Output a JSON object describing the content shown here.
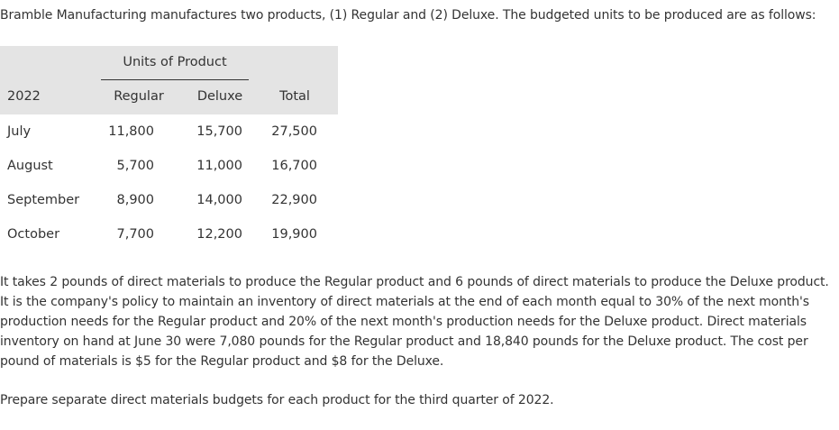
{
  "intro": "Bramble Manufacturing manufactures two products, (1) Regular and (2) Deluxe. The budgeted units to be produced are as follows:",
  "table": {
    "group_header": "Units of Product",
    "year_header": "2022",
    "columns": [
      "Regular",
      "Deluxe",
      "Total"
    ],
    "rows": [
      {
        "month": "July",
        "regular": "11,800",
        "deluxe": "15,700",
        "total": "27,500"
      },
      {
        "month": "August",
        "regular": "5,700",
        "deluxe": "11,000",
        "total": "16,700"
      },
      {
        "month": "September",
        "regular": "8,900",
        "deluxe": "14,000",
        "total": "22,900"
      },
      {
        "month": "October",
        "regular": "7,700",
        "deluxe": "12,200",
        "total": "19,900"
      }
    ]
  },
  "paragraph": "It takes 2 pounds of direct materials to produce the Regular product and 6 pounds of direct materials to produce the Deluxe product. It is the company's policy to maintain an inventory of direct materials at the end of each month equal to 30% of the next month's production needs for the Regular product and 20% of the next month's production needs for the Deluxe product. Direct materials inventory on hand at June 30 were 7,080 pounds for the Regular product and 18,840 pounds for the Deluxe product. The cost per pound of materials is $5 for the Regular product and $8 for the Deluxe.",
  "instruction": "Prepare separate direct materials budgets for each product for the third quarter of 2022."
}
